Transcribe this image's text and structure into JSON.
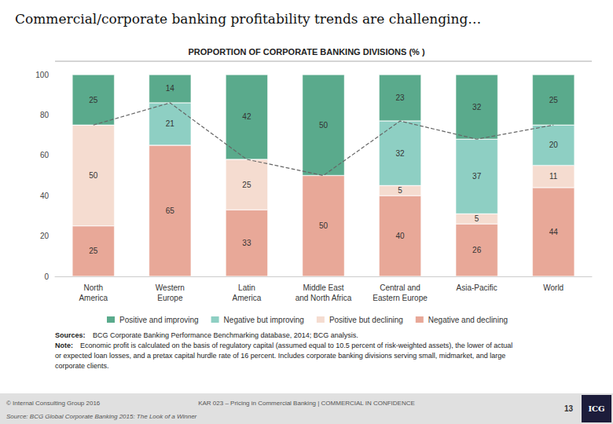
{
  "chart_data": {
    "type": "bar",
    "title": "Commercial/corporate banking profitability trends are challenging…",
    "subtitle": "PROPORTION OF CORPORATE BANKING DIVISIONS (% )",
    "categories": [
      "North\nAmerica",
      "Western\nEurope",
      "Latin\nAmerica",
      "Middle East\nand North Africa",
      "Central and\nEastern Europe",
      "Asia-Pacific",
      "World"
    ],
    "series": [
      {
        "name": "Negative and declining",
        "color": "#e8a898",
        "values": [
          25,
          65,
          33,
          50,
          40,
          26,
          44
        ],
        "data_labels": true
      },
      {
        "name": "Positive but declining",
        "color": "#f5dcd0",
        "values": [
          50,
          0,
          25,
          0,
          5,
          5,
          11
        ],
        "data_labels": true
      },
      {
        "name": "Negative but improving",
        "color": "#8ecfc3",
        "values": [
          0,
          21,
          0,
          0,
          32,
          37,
          20
        ],
        "data_labels": true
      },
      {
        "name": "Positive and improving",
        "color": "#5aaa8c",
        "values": [
          25,
          14,
          42,
          50,
          23,
          32,
          25
        ],
        "data_labels": true
      },
      {
        "type": "line",
        "color": "#666666",
        "line_style": "dashed",
        "values": [
          75,
          86,
          58,
          50,
          77,
          68,
          75
        ]
      }
    ],
    "stacked": true,
    "ylim": [
      0,
      100
    ],
    "yticks": [
      0,
      20,
      40,
      60,
      80,
      100
    ],
    "grid": false,
    "legend": "bottom",
    "notes": [
      {
        "label": "Sources:",
        "text": "BCG Corporate Banking Performance Benchmarking database, 2014; BCG analysis."
      },
      {
        "label": "Note:",
        "text": "Economic profit is calculated on the basis of regulatory capital (assumed equal to 10.5 percent of risk-weighted assets), the lower of actual"
      },
      {
        "text": "or expected loan losses, and a pretax capital hurdle rate of 16 percent. Includes corporate banking divisions serving small, midmarket, and large"
      },
      {
        "text": "corporate clients."
      }
    ],
    "footer": [
      "© Internal Consulting Group 2016",
      "KAR 023 – Pricing in Commercial Banking | COMMERCIAL IN CONFIDENCE",
      "13",
      "ICG"
    ],
    "source": "Source: BCG Global Corporate Banking 2015: The Look of a Winner"
  }
}
